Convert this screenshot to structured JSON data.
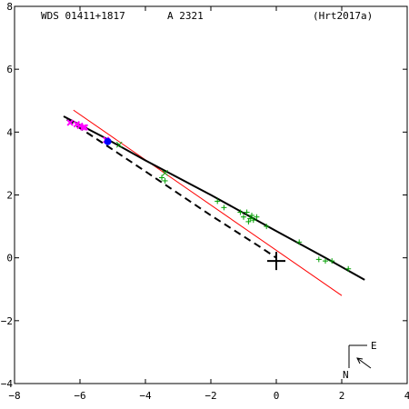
{
  "header": {
    "star": "WDS 01411+1817",
    "discoverer": "A  2321",
    "reference": "(Hrt2017a)"
  },
  "compass": {
    "east": "E",
    "north": "N"
  },
  "colors": {
    "axes": "#000000",
    "orbit": "#000000",
    "linear_fit": "#ff0000",
    "green_obs": "#00a000",
    "magenta_obs": "#ff00ff",
    "blue_obs": "#0000ff"
  },
  "chart_data": {
    "type": "scatter",
    "title": "",
    "xlabel": "",
    "ylabel": "",
    "xlim": [
      -8,
      4
    ],
    "ylim": [
      -4,
      8
    ],
    "x_ticks": [
      -8,
      -6,
      -4,
      -2,
      0,
      2,
      4
    ],
    "y_ticks": [
      -4,
      -2,
      0,
      2,
      4,
      6,
      8
    ],
    "x_tick_labels": [
      "−8",
      "−6",
      "−4",
      "−2",
      "0",
      "2",
      "4"
    ],
    "y_tick_labels": [
      "−4",
      "−2",
      "0",
      "2",
      "4",
      "6",
      "8"
    ],
    "orbit_solid": [
      [
        -6.5,
        4.5
      ],
      [
        -5.3,
        3.85
      ],
      [
        -4.0,
        3.1
      ],
      [
        -2.0,
        2.0
      ],
      [
        0.0,
        0.85
      ],
      [
        1.5,
        0.0
      ],
      [
        2.7,
        -0.7
      ]
    ],
    "orbit_dashed": [
      [
        -6.4,
        4.4
      ],
      [
        -5.3,
        3.65
      ],
      [
        -4.0,
        2.75
      ],
      [
        -2.0,
        1.35
      ],
      [
        -0.5,
        0.35
      ],
      [
        0.0,
        0.0
      ]
    ],
    "linear_fit": [
      [
        -6.2,
        4.7
      ],
      [
        2.0,
        -1.2
      ]
    ],
    "primary": [
      0.0,
      -0.1
    ],
    "green_plus": [
      [
        -3.5,
        2.55
      ],
      [
        -3.4,
        2.45
      ],
      [
        -1.8,
        1.8
      ],
      [
        -1.6,
        1.6
      ],
      [
        -1.1,
        1.45
      ],
      [
        -1.0,
        1.3
      ],
      [
        -0.9,
        1.45
      ],
      [
        -0.8,
        1.25
      ],
      [
        -0.75,
        1.35
      ],
      [
        -0.7,
        1.2
      ],
      [
        -0.85,
        1.15
      ],
      [
        -0.6,
        1.3
      ],
      [
        -0.3,
        1.0
      ],
      [
        0.7,
        0.5
      ],
      [
        1.3,
        -0.05
      ],
      [
        1.5,
        -0.1
      ],
      [
        1.7,
        -0.1
      ],
      [
        2.2,
        -0.35
      ]
    ],
    "magenta_x": [
      [
        -6.3,
        4.3
      ],
      [
        -6.1,
        4.25
      ],
      [
        -6.0,
        4.2
      ],
      [
        -5.9,
        4.15
      ],
      [
        -5.85,
        4.15
      ],
      [
        -5.2,
        3.75
      ]
    ],
    "blue_dot": [
      [
        -5.15,
        3.7
      ]
    ],
    "green_x": [
      [
        -4.8,
        3.6
      ],
      [
        -3.4,
        2.7
      ]
    ]
  }
}
